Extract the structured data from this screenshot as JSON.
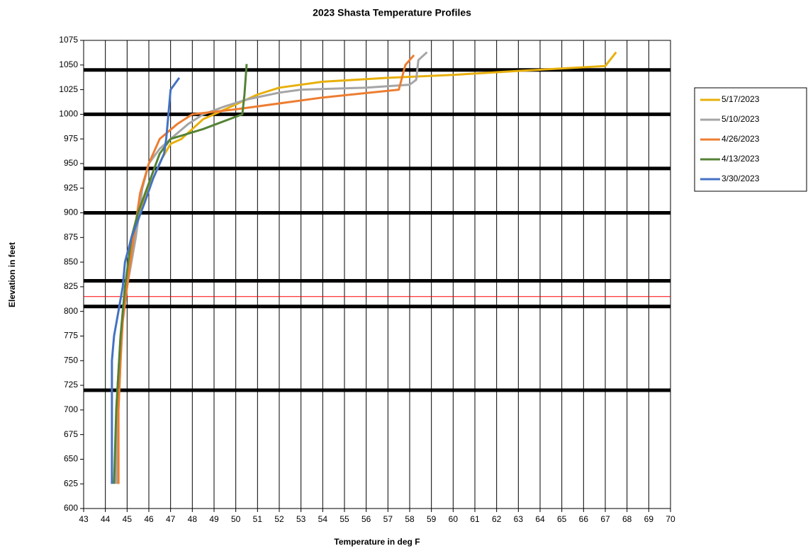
{
  "chart_data": {
    "type": "line",
    "title": "2023 Shasta Temperature Profiles",
    "xlabel": "Temperature in deg F",
    "ylabel": "Elevation in feet",
    "xlim": [
      43,
      70
    ],
    "xticks": [
      43,
      44,
      45,
      46,
      47,
      48,
      49,
      50,
      51,
      52,
      53,
      54,
      55,
      56,
      57,
      58,
      59,
      60,
      61,
      62,
      63,
      64,
      65,
      66,
      67,
      68,
      69,
      70
    ],
    "ylim": [
      600,
      1075
    ],
    "yticks": [
      600,
      625,
      650,
      675,
      700,
      725,
      750,
      775,
      800,
      825,
      850,
      875,
      900,
      925,
      950,
      975,
      1000,
      1025,
      1050,
      1075
    ],
    "grid": true,
    "legend": "right",
    "reference_lines": {
      "values": [
        1045,
        1000,
        945,
        900,
        831,
        805,
        720
      ],
      "color": "#000000"
    },
    "limit_line": {
      "value": 815,
      "color": "#ff0000"
    },
    "series": [
      {
        "name": "5/17/2023",
        "color": "#e8b00c",
        "x": [
          44.6,
          44.6,
          44.7,
          44.8,
          45.0,
          45.3,
          45.6,
          46.0,
          46.4,
          46.6,
          47.0,
          47.5,
          48.0,
          48.5,
          49.0,
          50.0,
          51.0,
          52.0,
          54.0,
          57.0,
          60.0,
          63.0,
          67.0,
          67.5
        ],
        "values": [
          625,
          700,
          750,
          800,
          825,
          875,
          900,
          925,
          945,
          955,
          970,
          975,
          985,
          995,
          1000,
          1010,
          1020,
          1027,
          1033,
          1037,
          1040,
          1044,
          1049,
          1063
        ]
      },
      {
        "name": "5/10/2023",
        "color": "#a5a5a5",
        "x": [
          44.5,
          44.5,
          44.7,
          45.0,
          45.4,
          45.7,
          46.0,
          46.5,
          47.0,
          47.8,
          48.5,
          49.5,
          50.5,
          52.0,
          53.0,
          56.0,
          58.0,
          58.3,
          58.4,
          58.8
        ],
        "values": [
          625,
          700,
          775,
          825,
          875,
          925,
          950,
          965,
          975,
          990,
          1000,
          1008,
          1015,
          1022,
          1025,
          1027,
          1030,
          1035,
          1055,
          1063
        ]
      },
      {
        "name": "4/26/2023",
        "color": "#ed7d31",
        "x": [
          44.6,
          44.6,
          44.7,
          44.8,
          45.0,
          45.3,
          45.6,
          46.0,
          46.5,
          47.3,
          48.0,
          50.0,
          54.0,
          57.5,
          57.8,
          58.2
        ],
        "values": [
          625,
          700,
          750,
          790,
          825,
          875,
          920,
          950,
          975,
          990,
          1000,
          1005,
          1017,
          1025,
          1050,
          1060
        ]
      },
      {
        "name": "4/13/2023",
        "color": "#548235",
        "x": [
          44.4,
          44.5,
          44.7,
          44.9,
          45.2,
          45.5,
          46.0,
          46.5,
          47.0,
          48.5,
          50.3,
          50.4,
          50.5
        ],
        "values": [
          625,
          700,
          775,
          825,
          875,
          900,
          930,
          960,
          975,
          985,
          1000,
          1020,
          1051
        ]
      },
      {
        "name": "3/30/2023",
        "color": "#4472c4",
        "x": [
          44.3,
          44.3,
          44.4,
          44.6,
          44.8,
          44.9,
          45.2,
          45.8,
          46.2,
          46.7,
          46.8,
          47.0,
          47.4
        ],
        "values": [
          625,
          750,
          775,
          800,
          825,
          850,
          875,
          910,
          935,
          960,
          975,
          1025,
          1037
        ]
      }
    ]
  }
}
